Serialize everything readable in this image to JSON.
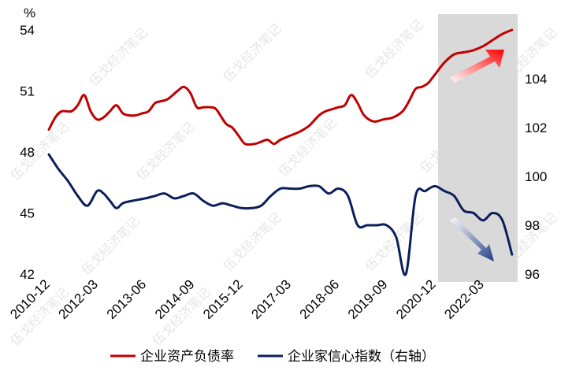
{
  "chart_data": {
    "type": "line",
    "unit_left": "%",
    "x_ticks": [
      "2010-12",
      "2012-03",
      "2013-06",
      "2014-09",
      "2015-12",
      "2017-03",
      "2018-06",
      "2019-09",
      "2020-12",
      "2022-03"
    ],
    "y_left": {
      "ticks": [
        42,
        45,
        48,
        51,
        54
      ],
      "lim": [
        42,
        54
      ]
    },
    "y_right": {
      "ticks": [
        96,
        98,
        100,
        102,
        104
      ],
      "lim": [
        96,
        106
      ]
    },
    "highlight_period": [
      "2020-12",
      "2022-12"
    ],
    "series": [
      {
        "name": "企业资产负债率",
        "axis": "left",
        "color": "#c00000",
        "values": [
          [
            "2010-12",
            49.1
          ],
          [
            "2011-02",
            49.7
          ],
          [
            "2011-04",
            50.0
          ],
          [
            "2011-07",
            50.0
          ],
          [
            "2011-09",
            50.3
          ],
          [
            "2011-11",
            50.8
          ],
          [
            "2012-01",
            50.0
          ],
          [
            "2012-03",
            49.6
          ],
          [
            "2012-05",
            49.7
          ],
          [
            "2012-07",
            50.0
          ],
          [
            "2012-09",
            50.3
          ],
          [
            "2012-11",
            49.9
          ],
          [
            "2013-01",
            49.8
          ],
          [
            "2013-03",
            49.8
          ],
          [
            "2013-05",
            49.9
          ],
          [
            "2013-07",
            50.0
          ],
          [
            "2013-09",
            50.4
          ],
          [
            "2013-11",
            50.5
          ],
          [
            "2014-01",
            50.6
          ],
          [
            "2014-04",
            51.0
          ],
          [
            "2014-06",
            51.2
          ],
          [
            "2014-08",
            50.9
          ],
          [
            "2014-10",
            50.2
          ],
          [
            "2014-12",
            50.2
          ],
          [
            "2015-02",
            50.2
          ],
          [
            "2015-04",
            50.1
          ],
          [
            "2015-07",
            49.4
          ],
          [
            "2015-09",
            49.2
          ],
          [
            "2015-11",
            48.8
          ],
          [
            "2016-01",
            48.4
          ],
          [
            "2016-04",
            48.4
          ],
          [
            "2016-06",
            48.5
          ],
          [
            "2016-08",
            48.6
          ],
          [
            "2016-10",
            48.4
          ],
          [
            "2016-12",
            48.6
          ],
          [
            "2017-03",
            48.8
          ],
          [
            "2017-06",
            49.0
          ],
          [
            "2017-09",
            49.3
          ],
          [
            "2017-12",
            49.8
          ],
          [
            "2018-02",
            50.0
          ],
          [
            "2018-04",
            50.1
          ],
          [
            "2018-06",
            50.2
          ],
          [
            "2018-08",
            50.3
          ],
          [
            "2018-10",
            50.8
          ],
          [
            "2018-12",
            50.4
          ],
          [
            "2019-02",
            49.8
          ],
          [
            "2019-05",
            49.5
          ],
          [
            "2019-08",
            49.6
          ],
          [
            "2019-11",
            49.7
          ],
          [
            "2020-02",
            50.0
          ],
          [
            "2020-04",
            50.5
          ],
          [
            "2020-06",
            51.1
          ],
          [
            "2020-08",
            51.2
          ],
          [
            "2020-10",
            51.4
          ],
          [
            "2020-12",
            51.8
          ],
          [
            "2021-03",
            52.4
          ],
          [
            "2021-06",
            52.8
          ],
          [
            "2021-09",
            52.9
          ],
          [
            "2021-12",
            53.0
          ],
          [
            "2022-03",
            53.2
          ],
          [
            "2022-06",
            53.5
          ],
          [
            "2022-09",
            53.8
          ],
          [
            "2022-12",
            54.0
          ]
        ]
      },
      {
        "name": "企业家信心指数（右轴）",
        "axis": "right",
        "color": "#0b1f5c",
        "values": [
          [
            "2010-12",
            100.9
          ],
          [
            "2011-03",
            100.3
          ],
          [
            "2011-06",
            99.8
          ],
          [
            "2011-09",
            99.2
          ],
          [
            "2011-12",
            98.8
          ],
          [
            "2012-03",
            99.4
          ],
          [
            "2012-05",
            99.3
          ],
          [
            "2012-07",
            99.0
          ],
          [
            "2012-09",
            98.7
          ],
          [
            "2012-11",
            98.9
          ],
          [
            "2013-02",
            99.0
          ],
          [
            "2013-06",
            99.1
          ],
          [
            "2013-09",
            99.2
          ],
          [
            "2013-12",
            99.3
          ],
          [
            "2014-03",
            99.1
          ],
          [
            "2014-06",
            99.2
          ],
          [
            "2014-09",
            99.3
          ],
          [
            "2014-12",
            99.0
          ],
          [
            "2015-03",
            98.8
          ],
          [
            "2015-06",
            98.9
          ],
          [
            "2015-09",
            98.8
          ],
          [
            "2015-12",
            98.7
          ],
          [
            "2016-03",
            98.7
          ],
          [
            "2016-06",
            98.8
          ],
          [
            "2016-09",
            99.2
          ],
          [
            "2016-12",
            99.5
          ],
          [
            "2017-03",
            99.5
          ],
          [
            "2017-06",
            99.5
          ],
          [
            "2017-09",
            99.6
          ],
          [
            "2017-12",
            99.6
          ],
          [
            "2018-03",
            99.3
          ],
          [
            "2018-06",
            99.5
          ],
          [
            "2018-09",
            99.2
          ],
          [
            "2018-12",
            98.0
          ],
          [
            "2019-03",
            98.0
          ],
          [
            "2019-06",
            98.0
          ],
          [
            "2019-09",
            98.0
          ],
          [
            "2019-12",
            97.5
          ],
          [
            "2020-03",
            96.0
          ],
          [
            "2020-06",
            99.2
          ],
          [
            "2020-09",
            99.4
          ],
          [
            "2020-12",
            99.6
          ],
          [
            "2021-03",
            99.4
          ],
          [
            "2021-06",
            99.2
          ],
          [
            "2021-09",
            98.6
          ],
          [
            "2021-12",
            98.5
          ],
          [
            "2022-03",
            98.2
          ],
          [
            "2022-06",
            98.5
          ],
          [
            "2022-09",
            98.2
          ],
          [
            "2022-12",
            96.8
          ]
        ]
      }
    ],
    "legend": {
      "items": [
        "企业资产负债率",
        "企业家信心指数（右轴）"
      ],
      "placement": "bottom"
    },
    "annotations": [
      {
        "type": "arrow",
        "direction": "up",
        "color": "#ff0000"
      },
      {
        "type": "arrow",
        "direction": "down",
        "color": "#1f3c88"
      }
    ],
    "watermark": "伍戈经济笔记",
    "grid": false
  }
}
